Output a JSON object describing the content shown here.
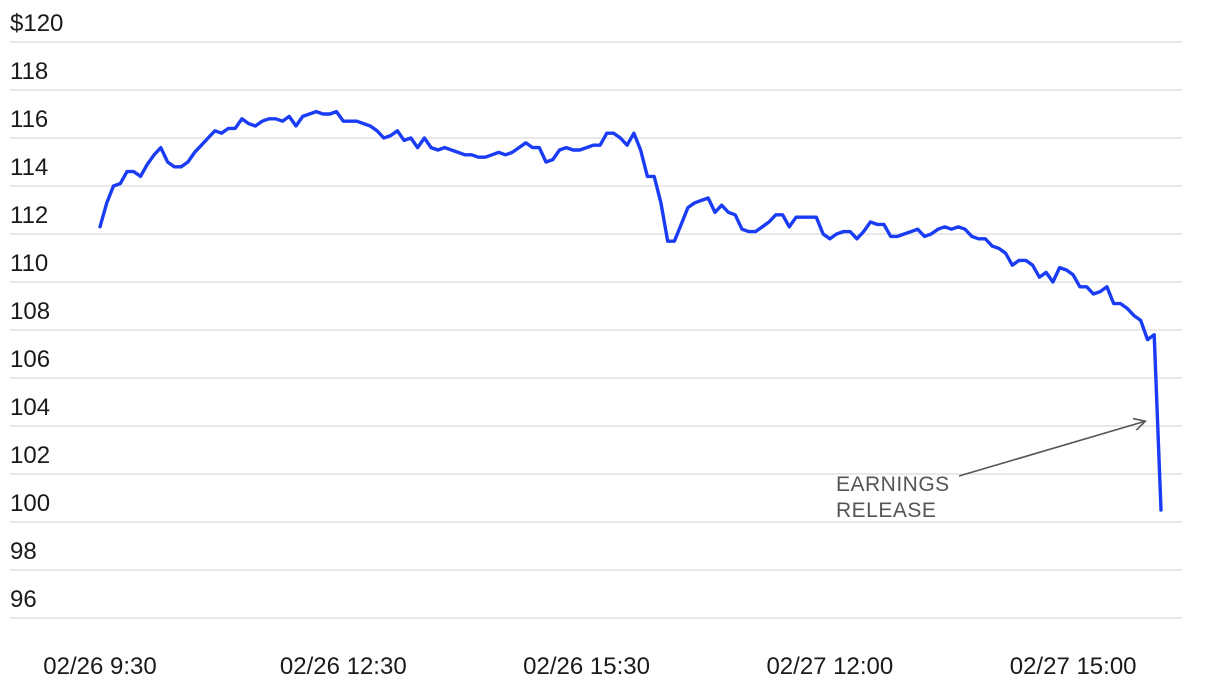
{
  "chart_data": {
    "type": "line",
    "title": "",
    "xlabel": "",
    "ylabel": "",
    "ylim": [
      96,
      120
    ],
    "y_ticks": [
      {
        "value": 120,
        "label": "$120"
      },
      {
        "value": 118,
        "label": "118"
      },
      {
        "value": 116,
        "label": "116"
      },
      {
        "value": 114,
        "label": "114"
      },
      {
        "value": 112,
        "label": "112"
      },
      {
        "value": 110,
        "label": "110"
      },
      {
        "value": 108,
        "label": "108"
      },
      {
        "value": 106,
        "label": "106"
      },
      {
        "value": 104,
        "label": "104"
      },
      {
        "value": 102,
        "label": "102"
      },
      {
        "value": 100,
        "label": "100"
      },
      {
        "value": 98,
        "label": "98"
      },
      {
        "value": 96,
        "label": "96"
      }
    ],
    "x_ticks": [
      {
        "label": "02/26 9:30",
        "index": 0
      },
      {
        "label": "02/26 12:30",
        "index": 36
      },
      {
        "label": "02/26 15:30",
        "index": 72
      },
      {
        "label": "02/27 12:00",
        "index": 108
      },
      {
        "label": "02/27 15:00",
        "index": 144
      }
    ],
    "grid": true,
    "line_color": "#1a3cf5",
    "series": [
      {
        "values": [
          112.3,
          113.3,
          114.0,
          114.1,
          114.6,
          114.6,
          114.4,
          114.9,
          115.3,
          115.6,
          115.0,
          114.8,
          114.8,
          115.0,
          115.4,
          115.7,
          116.0,
          116.3,
          116.2,
          116.4,
          116.4,
          116.8,
          116.6,
          116.5,
          116.7,
          116.8,
          116.8,
          116.7,
          116.9,
          116.5,
          116.9,
          117.0,
          117.1,
          117.0,
          117.0,
          117.1,
          116.7,
          116.7,
          116.7,
          116.6,
          116.5,
          116.3,
          116.0,
          116.1,
          116.3,
          115.9,
          116.0,
          115.6,
          116.0,
          115.6,
          115.5,
          115.6,
          115.5,
          115.4,
          115.3,
          115.3,
          115.2,
          115.2,
          115.3,
          115.4,
          115.3,
          115.4,
          115.6,
          115.8,
          115.6,
          115.6,
          115.0,
          115.1,
          115.5,
          115.6,
          115.5,
          115.5,
          115.6,
          115.7,
          115.7,
          116.2,
          116.2,
          116.0,
          115.7,
          116.2,
          115.5,
          114.4,
          114.4,
          113.3,
          111.7,
          111.7,
          112.4,
          113.1,
          113.3,
          113.4,
          113.5,
          112.9,
          113.2,
          112.9,
          112.8,
          112.2,
          112.1,
          112.1,
          112.3,
          112.5,
          112.8,
          112.8,
          112.3,
          112.7,
          112.7,
          112.7,
          112.7,
          112.0,
          111.8,
          112.0,
          112.1,
          112.1,
          111.8,
          112.1,
          112.5,
          112.4,
          112.4,
          111.9,
          111.9,
          112.0,
          112.1,
          112.2,
          111.9,
          112.0,
          112.2,
          112.3,
          112.2,
          112.3,
          112.2,
          111.9,
          111.8,
          111.8,
          111.5,
          111.4,
          111.2,
          110.7,
          110.9,
          110.9,
          110.7,
          110.2,
          110.4,
          110.0,
          110.6,
          110.5,
          110.3,
          109.8,
          109.8,
          109.5,
          109.6,
          109.8,
          109.1,
          109.1,
          108.9,
          108.6,
          108.4,
          107.6,
          107.8,
          100.5
        ]
      }
    ],
    "annotations": [
      {
        "lines": [
          "EARNINGS",
          "RELEASE"
        ],
        "target_index": 160,
        "target_value": 104.2
      }
    ]
  }
}
